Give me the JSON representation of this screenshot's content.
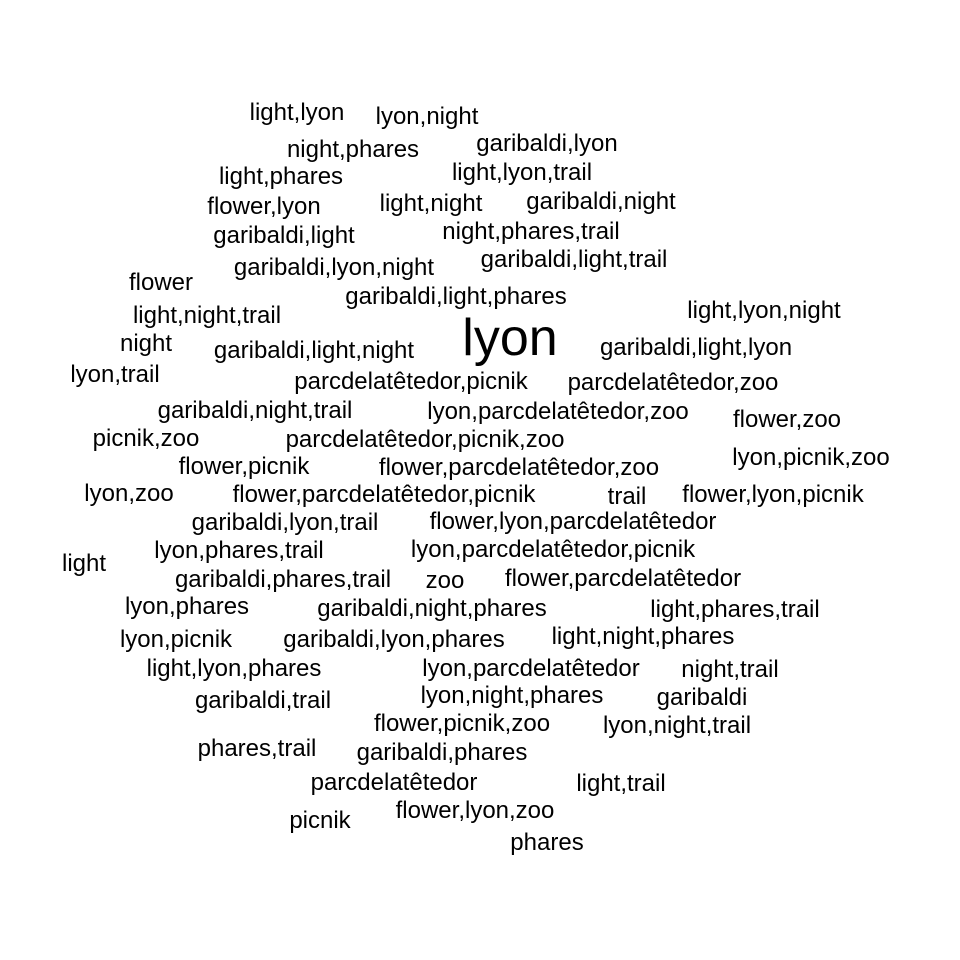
{
  "text_color": "#000000",
  "background_color": "#ffffff",
  "words": [
    {
      "id": "lyon",
      "text": "lyon"
    },
    {
      "id": "light-lyon",
      "text": "light,lyon"
    },
    {
      "id": "lyon-night",
      "text": "lyon,night"
    },
    {
      "id": "night-phares",
      "text": "night,phares"
    },
    {
      "id": "garibaldi-lyon",
      "text": "garibaldi,lyon"
    },
    {
      "id": "light-phares",
      "text": "light,phares"
    },
    {
      "id": "light-lyon-trail",
      "text": "light,lyon,trail"
    },
    {
      "id": "flower-lyon",
      "text": "flower,lyon"
    },
    {
      "id": "light-night",
      "text": "light,night"
    },
    {
      "id": "garibaldi-night",
      "text": "garibaldi,night"
    },
    {
      "id": "garibaldi-light",
      "text": "garibaldi,light"
    },
    {
      "id": "night-phares-trail",
      "text": "night,phares,trail"
    },
    {
      "id": "flower",
      "text": "flower"
    },
    {
      "id": "garibaldi-lyon-night",
      "text": "garibaldi,lyon,night"
    },
    {
      "id": "garibaldi-light-trail",
      "text": "garibaldi,light,trail"
    },
    {
      "id": "garibaldi-light-phares",
      "text": "garibaldi,light,phares"
    },
    {
      "id": "light-night-trail",
      "text": "light,night,trail"
    },
    {
      "id": "light-lyon-night",
      "text": "light,lyon,night"
    },
    {
      "id": "night",
      "text": "night"
    },
    {
      "id": "garibaldi-light-night",
      "text": "garibaldi,light,night"
    },
    {
      "id": "garibaldi-light-lyon",
      "text": "garibaldi,light,lyon"
    },
    {
      "id": "lyon-trail",
      "text": "lyon,trail"
    },
    {
      "id": "parcdelatetedor-picnik",
      "text": "parcdelatêtedor,picnik"
    },
    {
      "id": "parcdelatetedor-zoo",
      "text": "parcdelatêtedor,zoo"
    },
    {
      "id": "garibaldi-night-trail",
      "text": "garibaldi,night,trail"
    },
    {
      "id": "lyon-parcdelatetedor-zoo",
      "text": "lyon,parcdelatêtedor,zoo"
    },
    {
      "id": "flower-zoo",
      "text": "flower,zoo"
    },
    {
      "id": "picnik-zoo",
      "text": "picnik,zoo"
    },
    {
      "id": "parcdelatetedor-picnik-zoo",
      "text": "parcdelatêtedor,picnik,zoo"
    },
    {
      "id": "lyon-picnik-zoo",
      "text": "lyon,picnik,zoo"
    },
    {
      "id": "flower-picnik",
      "text": "flower,picnik"
    },
    {
      "id": "flower-parcdelatetedor-zoo",
      "text": "flower,parcdelatêtedor,zoo"
    },
    {
      "id": "lyon-zoo",
      "text": "lyon,zoo"
    },
    {
      "id": "flower-parcdelatetedor-picnik",
      "text": "flower,parcdelatêtedor,picnik"
    },
    {
      "id": "trail",
      "text": "trail"
    },
    {
      "id": "flower-lyon-picnik",
      "text": "flower,lyon,picnik"
    },
    {
      "id": "garibaldi-lyon-trail",
      "text": "garibaldi,lyon,trail"
    },
    {
      "id": "flower-lyon-parcdelatetedor",
      "text": "flower,lyon,parcdelatêtedor"
    },
    {
      "id": "light",
      "text": "light"
    },
    {
      "id": "lyon-phares-trail",
      "text": "lyon,phares,trail"
    },
    {
      "id": "lyon-parcdelatetedor-picnik",
      "text": "lyon,parcdelatêtedor,picnik"
    },
    {
      "id": "garibaldi-phares-trail",
      "text": "garibaldi,phares,trail"
    },
    {
      "id": "zoo",
      "text": "zoo"
    },
    {
      "id": "flower-parcdelatetedor",
      "text": "flower,parcdelatêtedor"
    },
    {
      "id": "lyon-phares",
      "text": "lyon,phares"
    },
    {
      "id": "garibaldi-night-phares",
      "text": "garibaldi,night,phares"
    },
    {
      "id": "light-phares-trail",
      "text": "light,phares,trail"
    },
    {
      "id": "lyon-picnik",
      "text": "lyon,picnik"
    },
    {
      "id": "garibaldi-lyon-phares",
      "text": "garibaldi,lyon,phares"
    },
    {
      "id": "light-night-phares",
      "text": "light,night,phares"
    },
    {
      "id": "light-lyon-phares",
      "text": "light,lyon,phares"
    },
    {
      "id": "lyon-parcdelatetedor",
      "text": "lyon,parcdelatêtedor"
    },
    {
      "id": "night-trail",
      "text": "night,trail"
    },
    {
      "id": "garibaldi-trail",
      "text": "garibaldi,trail"
    },
    {
      "id": "lyon-night-phares",
      "text": "lyon,night,phares"
    },
    {
      "id": "garibaldi",
      "text": "garibaldi"
    },
    {
      "id": "flower-picnik-zoo",
      "text": "flower,picnik,zoo"
    },
    {
      "id": "lyon-night-trail",
      "text": "lyon,night,trail"
    },
    {
      "id": "phares-trail",
      "text": "phares,trail"
    },
    {
      "id": "garibaldi-phares",
      "text": "garibaldi,phares"
    },
    {
      "id": "parcdelatetedor",
      "text": "parcdelatêtedor"
    },
    {
      "id": "light-trail",
      "text": "light,trail"
    },
    {
      "id": "flower-lyon-zoo",
      "text": "flower,lyon,zoo"
    },
    {
      "id": "picnik",
      "text": "picnik"
    },
    {
      "id": "phares",
      "text": "phares"
    }
  ]
}
